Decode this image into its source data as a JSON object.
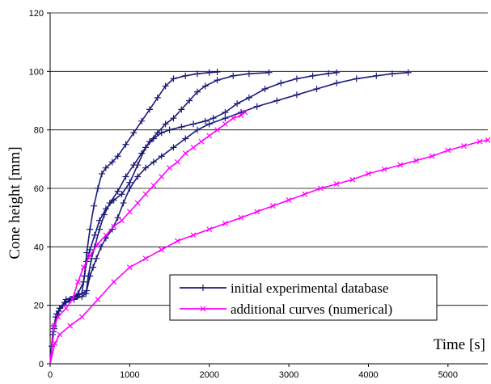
{
  "chart_data": {
    "type": "line",
    "xlabel": "Time [s]",
    "ylabel": "Cone height [mm]",
    "xlim": [
      0,
      5500
    ],
    "ylim": [
      0,
      120
    ],
    "xticks": [
      "0",
      "1000",
      "2000",
      "3000",
      "4000",
      "5000"
    ],
    "yticks": [
      "0",
      "20",
      "40",
      "60",
      "80",
      "100",
      "120"
    ],
    "grid": "horizontal",
    "legend_position": "lower-right",
    "legend": [
      {
        "label": "initial experimental database",
        "color": "#1a1a7a",
        "marker": "+"
      },
      {
        "label": "additional curves (numerical)",
        "color": "#ff00ff",
        "marker": "x"
      }
    ],
    "series": [
      {
        "group": 0,
        "color": "#1a1a7a",
        "marker": "+",
        "points": [
          [
            0,
            0
          ],
          [
            20,
            6
          ],
          [
            50,
            13
          ],
          [
            80,
            17
          ],
          [
            120,
            19
          ],
          [
            180,
            21
          ],
          [
            260,
            22
          ],
          [
            340,
            23
          ],
          [
            400,
            24
          ],
          [
            430,
            30
          ],
          [
            460,
            38
          ],
          [
            500,
            46
          ],
          [
            550,
            54
          ],
          [
            600,
            60
          ],
          [
            650,
            65
          ],
          [
            700,
            67
          ],
          [
            780,
            69
          ],
          [
            850,
            71
          ],
          [
            950,
            75
          ],
          [
            1050,
            79
          ],
          [
            1150,
            83
          ],
          [
            1250,
            87
          ],
          [
            1350,
            91
          ],
          [
            1450,
            95
          ],
          [
            1550,
            97.5
          ],
          [
            1700,
            98.5
          ],
          [
            1850,
            99.2
          ],
          [
            2000,
            99.6
          ],
          [
            2100,
            99.8
          ]
        ]
      },
      {
        "group": 0,
        "color": "#1a1a7a",
        "marker": "+",
        "points": [
          [
            0,
            0
          ],
          [
            30,
            10
          ],
          [
            70,
            16
          ],
          [
            120,
            19
          ],
          [
            200,
            21
          ],
          [
            300,
            22
          ],
          [
            400,
            23
          ],
          [
            450,
            24
          ],
          [
            480,
            30
          ],
          [
            520,
            36
          ],
          [
            560,
            40
          ],
          [
            620,
            46
          ],
          [
            680,
            51
          ],
          [
            750,
            55
          ],
          [
            850,
            59
          ],
          [
            950,
            64
          ],
          [
            1050,
            68
          ],
          [
            1150,
            72
          ],
          [
            1250,
            76
          ],
          [
            1350,
            79
          ],
          [
            1450,
            82
          ],
          [
            1550,
            84
          ],
          [
            1650,
            87
          ],
          [
            1750,
            90
          ],
          [
            1850,
            93
          ],
          [
            1950,
            95
          ],
          [
            2100,
            97
          ],
          [
            2300,
            98.5
          ],
          [
            2500,
            99.2
          ],
          [
            2750,
            99.6
          ]
        ]
      },
      {
        "group": 0,
        "color": "#1a1a7a",
        "marker": "+",
        "points": [
          [
            0,
            0
          ],
          [
            40,
            11
          ],
          [
            90,
            17
          ],
          [
            160,
            20
          ],
          [
            250,
            22
          ],
          [
            350,
            24
          ],
          [
            420,
            28
          ],
          [
            460,
            35
          ],
          [
            500,
            39
          ],
          [
            560,
            44
          ],
          [
            620,
            49
          ],
          [
            700,
            53
          ],
          [
            800,
            56
          ],
          [
            900,
            58
          ],
          [
            1000,
            62
          ],
          [
            1100,
            68
          ],
          [
            1200,
            74
          ],
          [
            1300,
            77
          ],
          [
            1400,
            79
          ],
          [
            1500,
            80
          ],
          [
            1650,
            81
          ],
          [
            1800,
            82
          ],
          [
            1950,
            83
          ],
          [
            2050,
            84
          ],
          [
            2200,
            86
          ],
          [
            2350,
            89
          ],
          [
            2500,
            91
          ],
          [
            2700,
            94
          ],
          [
            2900,
            96
          ],
          [
            3100,
            97.5
          ],
          [
            3300,
            98.5
          ],
          [
            3500,
            99.3
          ],
          [
            3600,
            99.6
          ]
        ]
      },
      {
        "group": 0,
        "color": "#1a1a7a",
        "marker": "+",
        "points": [
          [
            0,
            0
          ],
          [
            50,
            12
          ],
          [
            110,
            18
          ],
          [
            200,
            22
          ],
          [
            300,
            23
          ],
          [
            400,
            24
          ],
          [
            460,
            25
          ],
          [
            500,
            30
          ],
          [
            540,
            33
          ],
          [
            580,
            36
          ],
          [
            640,
            40
          ],
          [
            700,
            43
          ],
          [
            780,
            46
          ],
          [
            850,
            50
          ],
          [
            920,
            55
          ],
          [
            1000,
            60
          ],
          [
            1100,
            64
          ],
          [
            1200,
            67
          ],
          [
            1300,
            69
          ],
          [
            1400,
            71
          ],
          [
            1550,
            74
          ],
          [
            1700,
            77
          ],
          [
            1850,
            80
          ],
          [
            2000,
            82
          ],
          [
            2200,
            84
          ],
          [
            2400,
            86
          ],
          [
            2600,
            88
          ],
          [
            2850,
            90
          ],
          [
            3100,
            92
          ],
          [
            3350,
            94
          ],
          [
            3600,
            96
          ],
          [
            3850,
            97.5
          ],
          [
            4100,
            98.5
          ],
          [
            4300,
            99.2
          ],
          [
            4500,
            99.6
          ]
        ]
      },
      {
        "group": 1,
        "color": "#ff00ff",
        "marker": "x",
        "points": [
          [
            0,
            0
          ],
          [
            50,
            13
          ],
          [
            100,
            16
          ],
          [
            200,
            19
          ],
          [
            280,
            22
          ],
          [
            350,
            28
          ],
          [
            420,
            33
          ],
          [
            500,
            37
          ],
          [
            600,
            41
          ],
          [
            700,
            44
          ],
          [
            800,
            47
          ],
          [
            900,
            49
          ],
          [
            1000,
            52
          ],
          [
            1100,
            55
          ],
          [
            1200,
            58
          ],
          [
            1300,
            61
          ],
          [
            1400,
            64
          ],
          [
            1500,
            67
          ],
          [
            1600,
            69
          ],
          [
            1700,
            72
          ],
          [
            1800,
            74
          ],
          [
            1900,
            76
          ],
          [
            2000,
            78
          ],
          [
            2100,
            80
          ],
          [
            2200,
            82
          ],
          [
            2300,
            84
          ],
          [
            2400,
            85
          ],
          [
            2450,
            86
          ]
        ]
      },
      {
        "group": 1,
        "color": "#ff00ff",
        "marker": "x",
        "points": [
          [
            0,
            0
          ],
          [
            60,
            7
          ],
          [
            120,
            10
          ],
          [
            250,
            13
          ],
          [
            400,
            16
          ],
          [
            600,
            22
          ],
          [
            800,
            28
          ],
          [
            1000,
            33
          ],
          [
            1200,
            36
          ],
          [
            1400,
            39
          ],
          [
            1600,
            42
          ],
          [
            1800,
            44
          ],
          [
            2000,
            46
          ],
          [
            2200,
            48
          ],
          [
            2400,
            50
          ],
          [
            2600,
            52
          ],
          [
            2800,
            54
          ],
          [
            3000,
            56
          ],
          [
            3200,
            58
          ],
          [
            3400,
            60
          ],
          [
            3600,
            61.5
          ],
          [
            3800,
            63
          ],
          [
            4000,
            65
          ],
          [
            4200,
            66.5
          ],
          [
            4400,
            68
          ],
          [
            4600,
            69.5
          ],
          [
            4800,
            71
          ],
          [
            5000,
            73
          ],
          [
            5200,
            74.5
          ],
          [
            5400,
            76
          ],
          [
            5500,
            76.5
          ]
        ]
      }
    ]
  }
}
